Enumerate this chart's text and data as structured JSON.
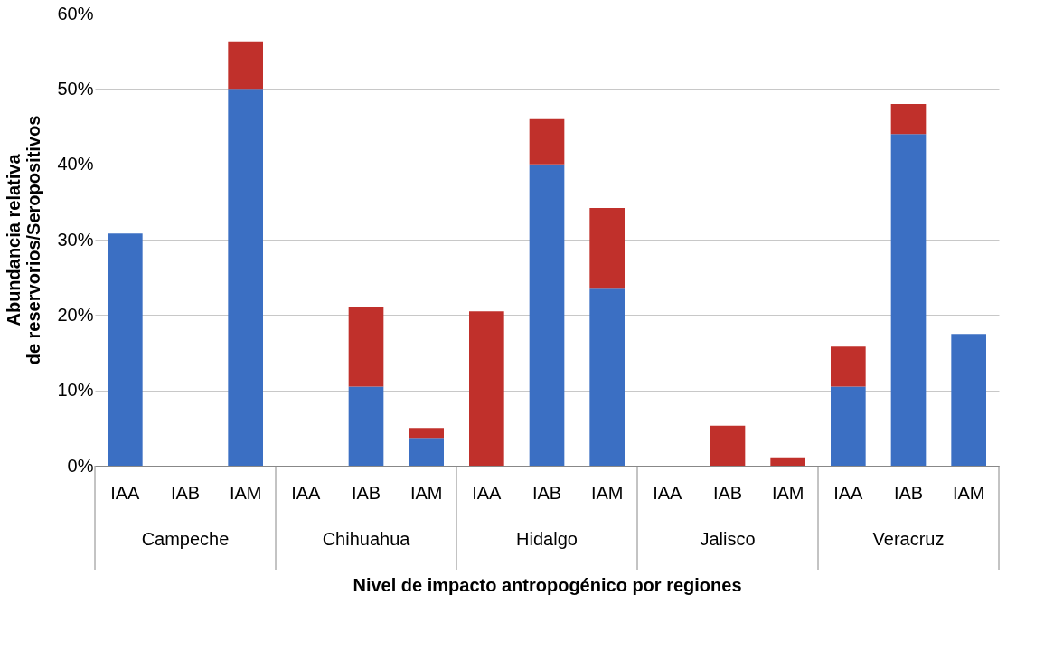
{
  "chart_data": {
    "type": "bar",
    "stacked": true,
    "xlabel": "Nivel de impacto antropogénico por regiones",
    "ylabel": "Abundancia relativa de reservorios/Seropositivos",
    "categories": [
      "IAA",
      "IAB",
      "IAM",
      "IAA",
      "IAB",
      "IAM",
      "IAA",
      "IAB",
      "IAM",
      "IAA",
      "IAB",
      "IAM",
      "IAA",
      "IAB",
      "IAM"
    ],
    "series": [
      {
        "color": "#3b6fc3",
        "values": [
          30.8,
          0,
          50,
          0,
          10.5,
          3.7,
          0,
          40,
          23.5,
          0,
          0,
          0,
          10.5,
          44,
          17.5
        ]
      },
      {
        "color": "#c0302b",
        "values": [
          0,
          0,
          6.3,
          0,
          10.5,
          1.3,
          20.5,
          6,
          10.7,
          0,
          5.3,
          1.1,
          5.3,
          4,
          0
        ]
      }
    ],
    "annotations": [
      "Campeche",
      "Chihuahua",
      "Hidalgo",
      "Jalisco",
      "Veracruz"
    ],
    "ylim": [
      0,
      60
    ],
    "yticks": [
      {
        "value": 0,
        "label": "0%"
      },
      {
        "value": 10,
        "label": "10%"
      },
      {
        "value": 20,
        "label": "20%"
      },
      {
        "value": 30,
        "label": "30%"
      },
      {
        "value": 40,
        "label": "40%"
      },
      {
        "value": 50,
        "label": "50%"
      },
      {
        "value": 60,
        "label": "60%"
      }
    ],
    "grid": "y"
  }
}
